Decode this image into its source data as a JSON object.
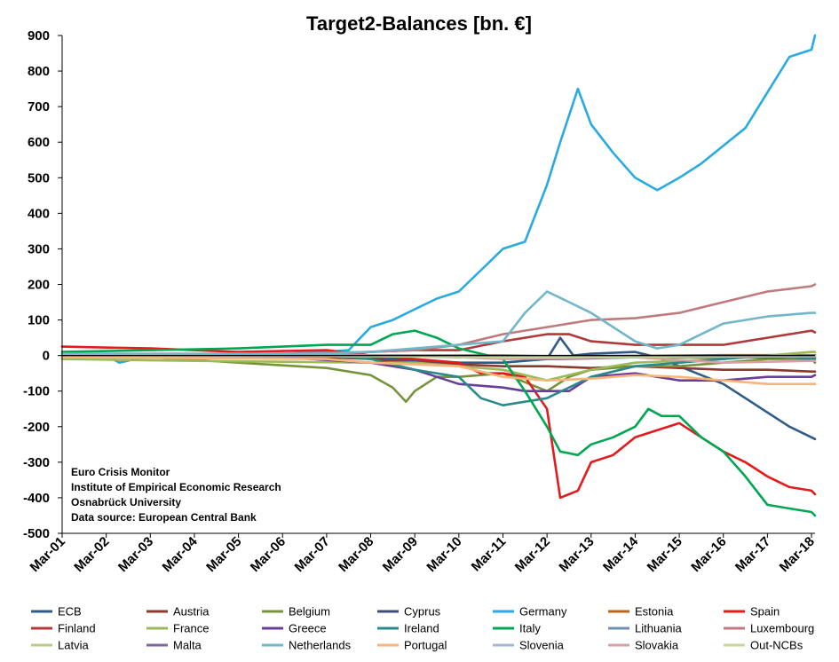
{
  "chart_data": {
    "type": "line",
    "title": "Target2-Balances [bn. €]",
    "xlabel": "",
    "ylabel": "",
    "ylim": [
      -500,
      900
    ],
    "yticks": [
      "900",
      "800",
      "700",
      "600",
      "500",
      "400",
      "300",
      "200",
      "100",
      "0",
      "-100",
      "-200",
      "-300",
      "-400",
      "-500"
    ],
    "xlim": [
      2001.0,
      2018.08
    ],
    "xticks": [
      "Mar-01",
      "Mar-02",
      "Mar-03",
      "Mar-04",
      "Mar-05",
      "Mar-06",
      "Mar-07",
      "Mar-08",
      "Mar-09",
      "Mar-10",
      "Mar-11",
      "Mar-12",
      "Mar-13",
      "Mar-14",
      "Mar-15",
      "Mar-16",
      "Mar-17",
      "Mar-18"
    ],
    "grid": false,
    "legend_position": "bottom",
    "annotations": [
      "Euro Crisis Monitor",
      "Institute of Empirical Economic Research",
      "Osnabrück University",
      "Data source: European Central Bank"
    ],
    "series": [
      {
        "name": "ECB",
        "color": "#2f5b8a",
        "x": [
          2001,
          2006,
          2008,
          2009,
          2010,
          2011,
          2012,
          2012.3,
          2012.6,
          2013,
          2014,
          2014.5,
          2015,
          2016,
          2016.5,
          2017,
          2017.5,
          2018,
          2018.08
        ],
        "y": [
          0,
          0,
          -5,
          -15,
          -20,
          -20,
          -10,
          50,
          0,
          5,
          10,
          -5,
          -30,
          -80,
          -120,
          -160,
          -200,
          -230,
          -235
        ]
      },
      {
        "name": "Austria",
        "color": "#8b3a2e",
        "x": [
          2001,
          2004,
          2007,
          2008,
          2009,
          2010,
          2011,
          2012,
          2013,
          2014,
          2015,
          2016,
          2017,
          2018,
          2018.08
        ],
        "y": [
          -5,
          -5,
          -5,
          -10,
          -20,
          -25,
          -30,
          -30,
          -35,
          -30,
          -35,
          -40,
          -40,
          -45,
          -45
        ]
      },
      {
        "name": "Belgium",
        "color": "#77933c",
        "x": [
          2001,
          2003,
          2005,
          2007,
          2008,
          2008.5,
          2008.8,
          2009,
          2009.5,
          2010,
          2011,
          2012,
          2012.5,
          2013,
          2014,
          2015,
          2016,
          2017,
          2018,
          2018.08
        ],
        "y": [
          5,
          -5,
          -20,
          -35,
          -55,
          -90,
          -130,
          -100,
          -60,
          -60,
          -50,
          -100,
          -60,
          -40,
          -30,
          -30,
          -20,
          -10,
          -10,
          -20
        ]
      },
      {
        "name": "Cyprus",
        "color": "#3c4e78",
        "x": [
          2001,
          2005,
          2008,
          2009,
          2010,
          2011,
          2012,
          2013,
          2014,
          2015,
          2016,
          2017,
          2018,
          2018.08
        ],
        "y": [
          0,
          0,
          0,
          -2,
          -5,
          -5,
          -10,
          -8,
          -5,
          -5,
          -5,
          -5,
          -5,
          -5
        ]
      },
      {
        "name": "Germany",
        "color": "#29aae1",
        "x": [
          2001,
          2002,
          2002.3,
          2003,
          2005,
          2006,
          2007,
          2007.5,
          2008,
          2008.5,
          2009,
          2009.5,
          2010,
          2010.5,
          2011,
          2011.5,
          2012,
          2012.3,
          2012.7,
          2013,
          2013.5,
          2014,
          2014.5,
          2015,
          2015.5,
          2016,
          2016.5,
          2017,
          2017.5,
          2018,
          2018.08
        ],
        "y": [
          5,
          0,
          -20,
          0,
          0,
          5,
          10,
          15,
          80,
          100,
          130,
          160,
          180,
          240,
          300,
          320,
          480,
          600,
          750,
          650,
          570,
          500,
          465,
          500,
          540,
          590,
          640,
          740,
          840,
          860,
          900
        ]
      },
      {
        "name": "Estonia",
        "color": "#b5651d",
        "x": [
          2001,
          2011,
          2012,
          2014,
          2016,
          2018,
          2018.08
        ],
        "y": [
          0,
          0,
          -2,
          -1,
          1,
          1,
          1
        ]
      },
      {
        "name": "Spain",
        "color": "#e41a1c",
        "x": [
          2001,
          2003,
          2005,
          2007,
          2008,
          2009,
          2010,
          2010.5,
          2011,
          2011.5,
          2012,
          2012.3,
          2012.7,
          2013,
          2013.5,
          2014,
          2014.5,
          2015,
          2015.5,
          2016,
          2016.5,
          2017,
          2017.5,
          2018,
          2018.08
        ],
        "y": [
          25,
          20,
          10,
          15,
          0,
          -10,
          -20,
          -50,
          -50,
          -60,
          -150,
          -400,
          -380,
          -300,
          -280,
          -230,
          -210,
          -190,
          -230,
          -270,
          -300,
          -340,
          -370,
          -380,
          -390
        ]
      },
      {
        "name": "Finland",
        "color": "#b03a3a",
        "x": [
          2001,
          2007,
          2008,
          2009,
          2010,
          2011,
          2012,
          2012.5,
          2013,
          2014,
          2015,
          2016,
          2017,
          2018,
          2018.08
        ],
        "y": [
          0,
          5,
          10,
          15,
          15,
          40,
          60,
          60,
          40,
          30,
          30,
          30,
          50,
          70,
          65
        ]
      },
      {
        "name": "France",
        "color": "#9bbb59",
        "x": [
          2001,
          2004,
          2008,
          2009,
          2010,
          2011,
          2012,
          2013,
          2014,
          2015,
          2016,
          2017,
          2018,
          2018.08
        ],
        "y": [
          -10,
          -15,
          -20,
          -20,
          -30,
          -40,
          -70,
          -40,
          -20,
          -15,
          -10,
          0,
          10,
          10
        ]
      },
      {
        "name": "Greece",
        "color": "#6a3d9a",
        "x": [
          2001,
          2006,
          2008,
          2009,
          2010,
          2011,
          2011.5,
          2012,
          2012.5,
          2013,
          2014,
          2015,
          2016,
          2017,
          2018,
          2018.08
        ],
        "y": [
          0,
          -5,
          -20,
          -40,
          -80,
          -90,
          -100,
          -100,
          -100,
          -60,
          -50,
          -70,
          -70,
          -60,
          -60,
          -55
        ]
      },
      {
        "name": "Ireland",
        "color": "#2a8a8a",
        "x": [
          2001,
          2007,
          2008,
          2009,
          2010,
          2010.5,
          2011,
          2011.5,
          2012,
          2012.5,
          2013,
          2014,
          2015,
          2016,
          2017,
          2018,
          2018.08
        ],
        "y": [
          0,
          0,
          -10,
          -40,
          -60,
          -120,
          -140,
          -130,
          -120,
          -90,
          -60,
          -30,
          -20,
          -10,
          0,
          -10,
          -10
        ]
      },
      {
        "name": "Italy",
        "color": "#00a651",
        "x": [
          2001,
          2003,
          2005,
          2007,
          2008,
          2008.5,
          2009,
          2009.5,
          2010,
          2011,
          2011.5,
          2012,
          2012.3,
          2012.7,
          2013,
          2013.5,
          2014,
          2014.3,
          2014.6,
          2015,
          2015.5,
          2016,
          2016.5,
          2017,
          2017.5,
          2018,
          2018.08
        ],
        "y": [
          10,
          15,
          20,
          30,
          30,
          60,
          70,
          50,
          20,
          -10,
          -100,
          -200,
          -270,
          -280,
          -250,
          -230,
          -200,
          -150,
          -170,
          -170,
          -230,
          -270,
          -340,
          -420,
          -430,
          -440,
          -450
        ]
      },
      {
        "name": "Lithuania",
        "color": "#6f8fb3",
        "x": [
          2001,
          2008,
          2011,
          2014,
          2016,
          2018,
          2018.08
        ],
        "y": [
          0,
          0,
          -2,
          -3,
          -2,
          -2,
          -2
        ]
      },
      {
        "name": "Luxembourg",
        "color": "#c0797d",
        "x": [
          2001,
          2006,
          2008,
          2009,
          2010,
          2011,
          2012,
          2013,
          2014,
          2015,
          2016,
          2017,
          2018,
          2018.08
        ],
        "y": [
          0,
          5,
          10,
          15,
          30,
          60,
          80,
          100,
          105,
          120,
          150,
          180,
          195,
          200
        ]
      },
      {
        "name": "Latvia",
        "color": "#b8c98a",
        "x": [
          2001,
          2008,
          2011,
          2014,
          2016,
          2018,
          2018.08
        ],
        "y": [
          0,
          0,
          -2,
          -3,
          -2,
          -2,
          -2
        ]
      },
      {
        "name": "Malta",
        "color": "#8064a2",
        "x": [
          2001,
          2008,
          2011,
          2014,
          2016,
          2018,
          2018.08
        ],
        "y": [
          0,
          -1,
          -2,
          -3,
          -2,
          -2,
          -2
        ]
      },
      {
        "name": "Netherlands",
        "color": "#6fb7c9",
        "x": [
          2001,
          2007,
          2008,
          2009,
          2010,
          2011,
          2011.5,
          2012,
          2012.5,
          2013,
          2014,
          2014.5,
          2015,
          2015.5,
          2016,
          2017,
          2018,
          2018.08
        ],
        "y": [
          5,
          5,
          10,
          20,
          30,
          40,
          120,
          180,
          150,
          120,
          40,
          20,
          30,
          60,
          90,
          110,
          120,
          120
        ]
      },
      {
        "name": "Portugal",
        "color": "#fab37a",
        "x": [
          2001,
          2007,
          2008,
          2009,
          2010,
          2011,
          2012,
          2013,
          2014,
          2015,
          2016,
          2017,
          2018,
          2018.08
        ],
        "y": [
          -5,
          -10,
          -20,
          -25,
          -30,
          -60,
          -70,
          -65,
          -55,
          -60,
          -70,
          -80,
          -80,
          -80
        ]
      },
      {
        "name": "Slovenia",
        "color": "#9fb8d6",
        "x": [
          2001,
          2008,
          2011,
          2014,
          2016,
          2018,
          2018.08
        ],
        "y": [
          0,
          0,
          -5,
          -5,
          -3,
          -2,
          -2
        ]
      },
      {
        "name": "Slovakia",
        "color": "#d7a0a3",
        "x": [
          2001,
          2008,
          2009,
          2011,
          2014,
          2016,
          2018,
          2018.08
        ],
        "y": [
          0,
          0,
          0,
          -10,
          -5,
          -20,
          -15,
          -15
        ]
      },
      {
        "name": "Out-NCBs",
        "color": "#c4d79b",
        "x": [
          2001,
          2008,
          2011,
          2014,
          2016,
          2018,
          2018.08
        ],
        "y": [
          0,
          -2,
          -5,
          -3,
          -2,
          -1,
          -1
        ]
      }
    ]
  }
}
